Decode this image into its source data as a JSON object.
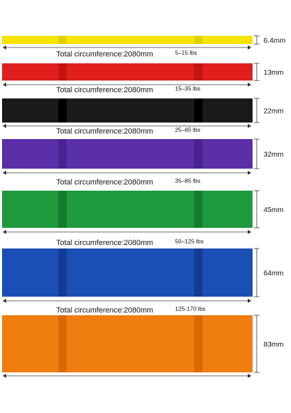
{
  "bands": [
    {
      "width": "6.4mm",
      "circumference": "Total circumference:2080mm",
      "resistance": "5–15 lbs"
    },
    {
      "width": "13mm",
      "circumference": "Total circumference:2080mm",
      "resistance": "15–35 lbs"
    },
    {
      "width": "22mm",
      "circumference": "Total circumference:2080mm",
      "resistance": "25–65 lbs"
    },
    {
      "width": "32mm",
      "circumference": "Total circumference:2080mm",
      "resistance": "35–85 lbs"
    },
    {
      "width": "45mm",
      "circumference": "Total circumference:2080mm",
      "resistance": "50–125 lbs"
    },
    {
      "width": "64mm",
      "circumference": "Total circumference:2080mm",
      "resistance": "125-170 lbs"
    },
    {
      "width": "83mm"
    }
  ]
}
